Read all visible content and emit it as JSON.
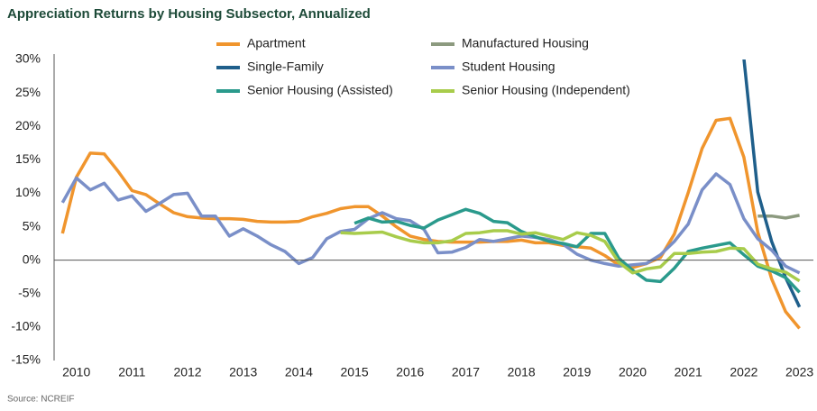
{
  "chart_data": {
    "type": "line",
    "title": "Appreciation Returns by Housing Subsector, Annualized",
    "source": "Source: NCREIF",
    "x": [
      2009.75,
      2010,
      2010.25,
      2010.5,
      2010.75,
      2011,
      2011.25,
      2011.5,
      2011.75,
      2012,
      2012.25,
      2012.5,
      2012.75,
      2013,
      2013.25,
      2013.5,
      2013.75,
      2014,
      2014.25,
      2014.5,
      2014.75,
      2015,
      2015.25,
      2015.5,
      2015.75,
      2016,
      2016.25,
      2016.5,
      2016.75,
      2017,
      2017.25,
      2017.5,
      2017.75,
      2018,
      2018.25,
      2018.5,
      2018.75,
      2019,
      2019.25,
      2019.5,
      2019.75,
      2020,
      2020.25,
      2020.5,
      2020.75,
      2021,
      2021.25,
      2021.5,
      2021.75,
      2022,
      2022.25,
      2022.5,
      2022.75,
      2023
    ],
    "xlim": [
      2009.6,
      2023.25
    ],
    "xticks": [
      2010,
      2011,
      2012,
      2013,
      2014,
      2015,
      2016,
      2017,
      2018,
      2019,
      2020,
      2021,
      2022,
      2023
    ],
    "ylim": [
      -15,
      30
    ],
    "yticks": [
      {
        "value": -15,
        "label": "-15%"
      },
      {
        "value": -10,
        "label": "-10%"
      },
      {
        "value": -5,
        "label": "-5%"
      },
      {
        "value": 0,
        "label": "0%"
      },
      {
        "value": 5,
        "label": "5%"
      },
      {
        "value": 10,
        "label": "10%"
      },
      {
        "value": 15,
        "label": "15%"
      },
      {
        "value": 20,
        "label": "20%"
      },
      {
        "value": 25,
        "label": "25%"
      },
      {
        "value": 30,
        "label": "30%"
      }
    ],
    "grid": false,
    "legend": "top",
    "series": [
      {
        "name": "Apartment",
        "color": "#f0952d",
        "values": [
          4,
          12.4,
          16,
          15.9,
          13.3,
          10.4,
          9.8,
          8.4,
          7.1,
          6.5,
          6.3,
          6.2,
          6.2,
          6.1,
          5.8,
          5.7,
          5.7,
          5.8,
          6.5,
          7.0,
          7.7,
          8.0,
          8.0,
          6.6,
          5.0,
          3.6,
          3.1,
          2.8,
          2.7,
          2.7,
          2.7,
          2.8,
          2.8,
          3.0,
          2.6,
          2.6,
          2.2,
          2.0,
          1.8,
          0.7,
          -0.7,
          -1.1,
          -0.5,
          0.4,
          3.9,
          10.1,
          16.7,
          20.9,
          21.2,
          15.4,
          4.2,
          -2.8,
          -7.7,
          -10.2
        ]
      },
      {
        "name": "Manufactured Housing",
        "color": "#8c9a7f",
        "values": [
          null,
          null,
          null,
          null,
          null,
          null,
          null,
          null,
          null,
          null,
          null,
          null,
          null,
          null,
          null,
          null,
          null,
          null,
          null,
          null,
          null,
          null,
          null,
          null,
          null,
          null,
          null,
          null,
          null,
          null,
          null,
          null,
          null,
          null,
          null,
          null,
          null,
          null,
          null,
          null,
          null,
          null,
          null,
          null,
          null,
          null,
          null,
          null,
          null,
          null,
          6.6,
          6.6,
          6.3,
          6.7
        ]
      },
      {
        "name": "Single-Family",
        "color": "#1f5f8b",
        "values": [
          null,
          null,
          null,
          null,
          null,
          null,
          null,
          null,
          null,
          null,
          null,
          null,
          null,
          null,
          null,
          null,
          null,
          null,
          null,
          null,
          null,
          null,
          null,
          null,
          null,
          null,
          null,
          null,
          null,
          null,
          null,
          null,
          null,
          null,
          null,
          null,
          null,
          null,
          null,
          null,
          null,
          null,
          null,
          null,
          null,
          null,
          null,
          null,
          null,
          30.2,
          10.2,
          2.8,
          -2.6,
          -7.0
        ]
      },
      {
        "name": "Student Housing",
        "color": "#7a8fc8",
        "values": [
          8.6,
          12.3,
          10.5,
          11.5,
          9.0,
          9.6,
          7.3,
          8.5,
          9.8,
          10.0,
          6.6,
          6.6,
          3.6,
          4.7,
          3.6,
          2.3,
          1.3,
          -0.5,
          0.4,
          3.2,
          4.3,
          4.6,
          6.2,
          7.1,
          6.2,
          5.9,
          4.6,
          1.1,
          1.2,
          1.9,
          3.1,
          2.8,
          3.2,
          3.6,
          3.4,
          3.1,
          2.4,
          0.9,
          0,
          -0.5,
          -0.9,
          -0.7,
          -0.5,
          0.8,
          2.8,
          5.4,
          10.5,
          12.9,
          11.3,
          6.2,
          3.2,
          1.5,
          -0.9,
          -1.9
        ]
      },
      {
        "name": "Senior Housing (Assisted)",
        "color": "#2a9a8c",
        "values": [
          null,
          null,
          null,
          null,
          null,
          null,
          null,
          null,
          null,
          null,
          null,
          null,
          null,
          null,
          null,
          null,
          null,
          null,
          null,
          null,
          null,
          5.5,
          6.3,
          5.7,
          5.8,
          5.2,
          4.8,
          6.0,
          6.8,
          7.6,
          7.0,
          5.8,
          5.6,
          4.3,
          3.5,
          2.8,
          2.5,
          2.0,
          4.0,
          4.0,
          0.3,
          -1.5,
          -3.0,
          -3.2,
          -1.2,
          1.3,
          1.8,
          2.2,
          2.6,
          0.8,
          -0.9,
          -1.6,
          -2.6,
          -4.8
        ]
      },
      {
        "name": "Senior Housing (Independent)",
        "color": "#a8cc4b",
        "values": [
          null,
          null,
          null,
          null,
          null,
          null,
          null,
          null,
          null,
          null,
          null,
          null,
          null,
          null,
          null,
          null,
          null,
          null,
          null,
          null,
          4.1,
          4.0,
          4.1,
          4.2,
          3.5,
          2.9,
          2.6,
          2.6,
          2.9,
          4.0,
          4.1,
          4.4,
          4.4,
          3.9,
          4.1,
          3.6,
          3.1,
          4.1,
          3.7,
          2.8,
          -0.3,
          -1.9,
          -1.3,
          -1.0,
          1.0,
          1.0,
          1.2,
          1.3,
          1.8,
          1.7,
          -0.6,
          -1.3,
          -1.8,
          -3.1
        ]
      }
    ]
  }
}
